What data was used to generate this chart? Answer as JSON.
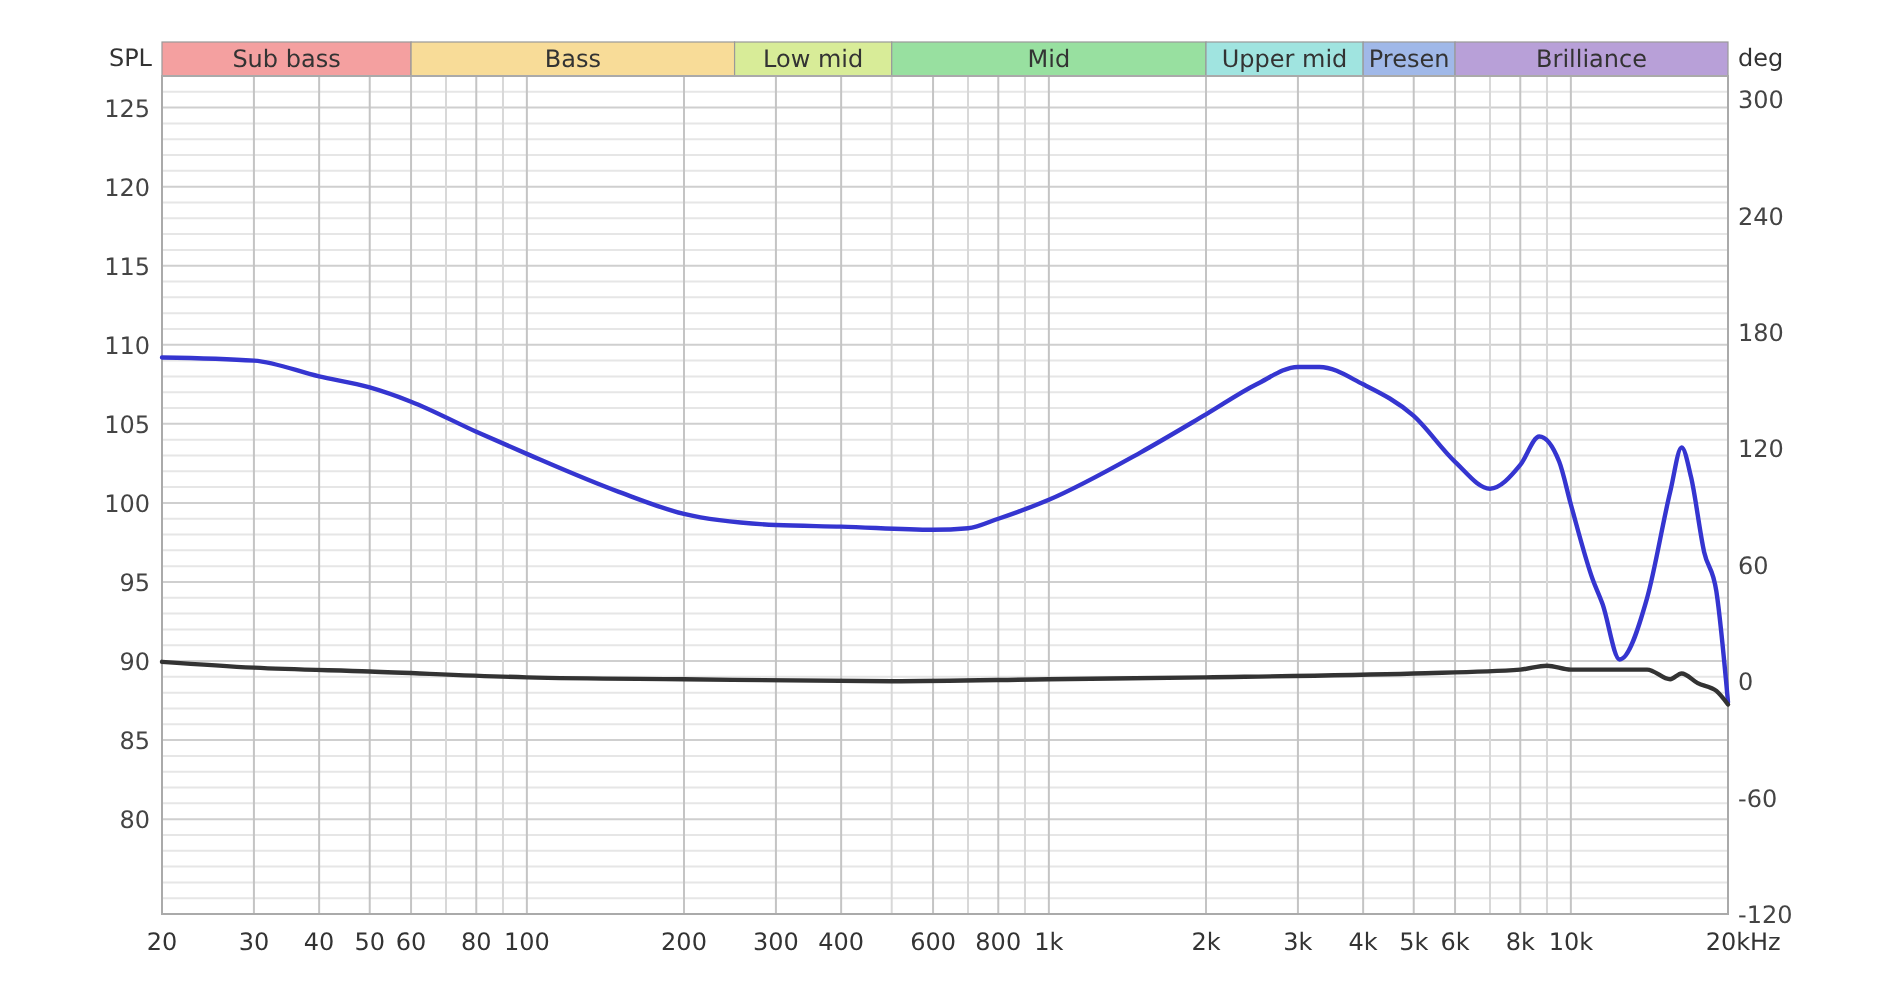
{
  "chart_data": {
    "type": "line",
    "ylabel": "SPL",
    "y2label": "deg",
    "log": "x",
    "grid": true,
    "line_style": "solid",
    "xlim": [
      20,
      20000
    ],
    "xticks": [
      20,
      30,
      40,
      50,
      60,
      {
        "value": 70,
        "label": null
      },
      80,
      {
        "value": 90,
        "label": null
      },
      100,
      200,
      300,
      400,
      {
        "value": 500,
        "label": null
      },
      600,
      {
        "value": 700,
        "label": null
      },
      800,
      {
        "value": 900,
        "label": null
      },
      {
        "value": 1000,
        "label": "1k"
      },
      {
        "value": 2000,
        "label": "2k"
      },
      {
        "value": 3000,
        "label": "3k"
      },
      {
        "value": 4000,
        "label": "4k"
      },
      {
        "value": 5000,
        "label": "5k"
      },
      {
        "value": 6000,
        "label": "6k"
      },
      {
        "value": 7000,
        "label": null
      },
      {
        "value": 8000,
        "label": "8k"
      },
      {
        "value": 9000,
        "label": null
      },
      {
        "value": 10000,
        "label": "10k"
      },
      {
        "value": 20000,
        "label": "20k"
      }
    ],
    "xlabel": "Hz",
    "ylim": [
      74,
      127
    ],
    "yticks": [
      {
        "value": 75,
        "label": null
      },
      {
        "value": 76,
        "label": null
      },
      {
        "value": 77,
        "label": null
      },
      {
        "value": 78,
        "label": null
      },
      {
        "value": 79,
        "label": null
      },
      80,
      {
        "value": 81,
        "label": null
      },
      {
        "value": 82,
        "label": null
      },
      {
        "value": 83,
        "label": null
      },
      {
        "value": 84,
        "label": null
      },
      85,
      {
        "value": 86,
        "label": null
      },
      {
        "value": 87,
        "label": null
      },
      {
        "value": 88,
        "label": null
      },
      {
        "value": 89,
        "label": null
      },
      90,
      {
        "value": 91,
        "label": null
      },
      {
        "value": 92,
        "label": null
      },
      {
        "value": 93,
        "label": null
      },
      {
        "value": 94,
        "label": null
      },
      95,
      {
        "value": 96,
        "label": null
      },
      {
        "value": 97,
        "label": null
      },
      {
        "value": 98,
        "label": null
      },
      {
        "value": 99,
        "label": null
      },
      100,
      {
        "value": 101,
        "label": null
      },
      {
        "value": 102,
        "label": null
      },
      {
        "value": 103,
        "label": null
      },
      {
        "value": 104,
        "label": null
      },
      105,
      {
        "value": 106,
        "label": null
      },
      {
        "value": 107,
        "label": null
      },
      {
        "value": 108,
        "label": null
      },
      {
        "value": 109,
        "label": null
      },
      110,
      {
        "value": 111,
        "label": null
      },
      {
        "value": 112,
        "label": null
      },
      {
        "value": 113,
        "label": null
      },
      {
        "value": 114,
        "label": null
      },
      115,
      {
        "value": 116,
        "label": null
      },
      {
        "value": 117,
        "label": null
      },
      {
        "value": 118,
        "label": null
      },
      {
        "value": 119,
        "label": null
      },
      120,
      {
        "value": 121,
        "label": null
      },
      {
        "value": 122,
        "label": null
      },
      {
        "value": 123,
        "label": null
      },
      {
        "value": 124,
        "label": null
      },
      125,
      {
        "value": 126,
        "label": null
      }
    ],
    "y2lim": [
      -120,
      312
    ],
    "y2ticks": [
      -120,
      -60,
      0,
      60,
      120,
      180,
      240,
      300
    ],
    "bands": [
      {
        "axis": "x",
        "from": 20,
        "to": 60,
        "label": "Sub bass",
        "color": "#f4a0a0"
      },
      {
        "axis": "x",
        "from": 60,
        "to": 250,
        "label": "Bass",
        "color": "#f8dc98"
      },
      {
        "axis": "x",
        "from": 250,
        "to": 500,
        "label": "Low mid",
        "color": "#d8ec98"
      },
      {
        "axis": "x",
        "from": 500,
        "to": 2000,
        "label": "Mid",
        "color": "#98e0a0"
      },
      {
        "axis": "x",
        "from": 2000,
        "to": 4000,
        "label": "Upper mid",
        "color": "#a0e4e0"
      },
      {
        "axis": "x",
        "from": 4000,
        "to": 6000,
        "label": "Presen",
        "color": "#a0b8e8"
      },
      {
        "axis": "x",
        "from": 6000,
        "to": 20000,
        "label": "Brilliance",
        "color": "#b8a0d8"
      }
    ],
    "series": [
      {
        "color": "#3535d0",
        "x": [
          20,
          30,
          40,
          50,
          60,
          80,
          100,
          150,
          200,
          300,
          400,
          600,
          700,
          800,
          1000,
          1500,
          2000,
          2500,
          3000,
          3300,
          4000,
          5000,
          6000,
          7000,
          8000,
          8700,
          9500,
          10000,
          11000,
          11500,
          12400,
          14000,
          15500,
          16300,
          17000,
          18000,
          19000,
          20000
        ],
        "values": [
          109.2,
          109,
          108,
          107.3,
          106.4,
          104.5,
          103.1,
          100.7,
          99.3,
          98.6,
          98.5,
          98.3,
          98.4,
          99,
          100.2,
          103.2,
          105.6,
          107.5,
          108.6,
          108.6,
          107.5,
          105.5,
          102.6,
          100.9,
          102.4,
          104.2,
          102.6,
          99.9,
          95.2,
          93.6,
          90.1,
          94,
          100.7,
          103.5,
          101.6,
          96.9,
          94.4,
          87.4
        ]
      },
      {
        "color": "#333333",
        "axis": "y2",
        "x": [
          20,
          30,
          50,
          100,
          200,
          500,
          1000,
          2000,
          5000,
          8000,
          9000,
          10000,
          14000,
          15500,
          16300,
          17500,
          19000,
          20000
        ],
        "values": [
          10,
          7,
          5,
          2,
          1,
          0,
          1,
          2,
          4,
          6,
          8,
          6,
          6,
          1,
          4,
          -1,
          -5,
          -12
        ]
      }
    ]
  }
}
